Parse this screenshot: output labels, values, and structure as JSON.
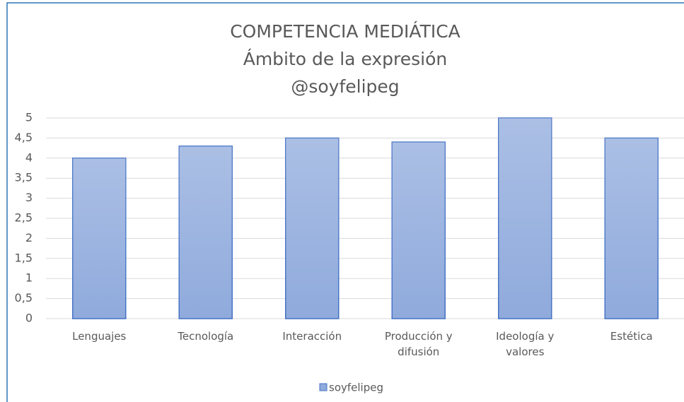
{
  "chart_data": {
    "type": "bar",
    "title": [
      "COMPETENCIA MEDIÁTICA",
      "Ámbito de la expresión",
      "@soyfelipeg"
    ],
    "categories": [
      "Lenguajes",
      "Tecnología",
      "Interacción",
      "Producción y difusión",
      "Ideología y valores",
      "Estética"
    ],
    "series": [
      {
        "name": "soyfelipeg",
        "color": "#8faadc",
        "values": [
          4,
          4.3,
          4.5,
          4.4,
          5,
          4.5
        ]
      }
    ],
    "ylim": [
      0,
      5
    ],
    "yticks": [
      0,
      {
        "value": 0.5,
        "label": "0,5"
      },
      1,
      {
        "value": 1.5,
        "label": "1,5"
      },
      2,
      {
        "value": 2.5,
        "label": "2,5"
      },
      3,
      {
        "value": 3.5,
        "label": "3,5"
      },
      4,
      {
        "value": 4.5,
        "label": "4,5"
      },
      5
    ],
    "grid": true,
    "legend": "bottom"
  }
}
